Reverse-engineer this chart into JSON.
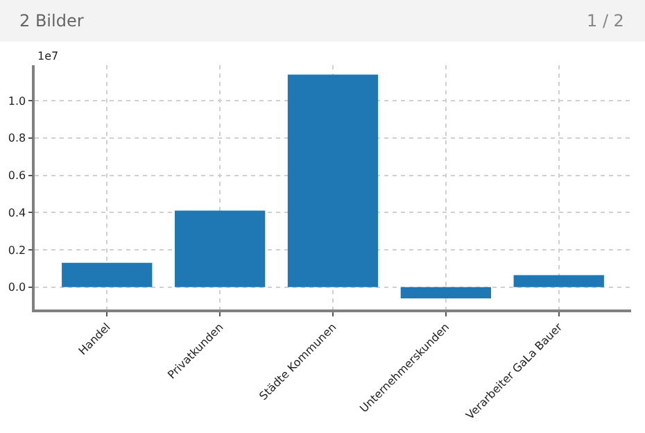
{
  "chart_data": {
    "type": "bar",
    "categories": [
      "Handel",
      "Privatkunden",
      "Städte Kommunen",
      "Unternehmerskunden",
      "Verarbeiter GaLa Bauer"
    ],
    "values": [
      0.13,
      0.41,
      1.14,
      -0.06,
      0.064
    ],
    "color": "#1f77b4",
    "ylim": [
      -0.12,
      1.19
    ],
    "yticks": [
      {
        "value": 0,
        "label": "0.0"
      },
      0.2,
      0.4,
      0.6,
      0.8,
      {
        "value": 1,
        "label": "1.0"
      }
    ],
    "grid": true,
    "annotations": [
      "2 Bilder",
      "1 / 2",
      "1e7"
    ]
  }
}
